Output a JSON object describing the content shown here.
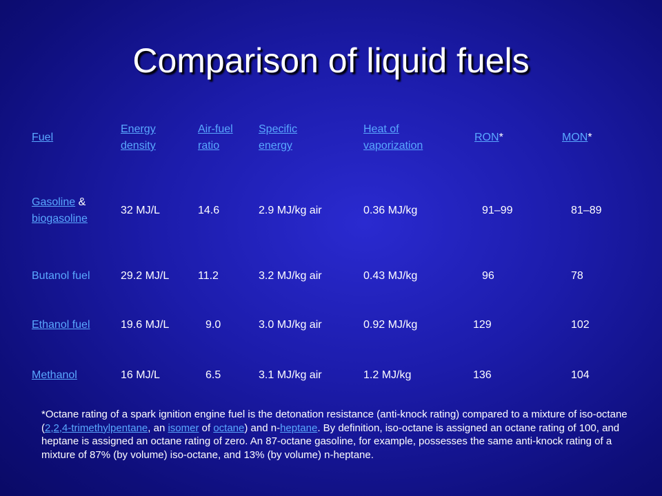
{
  "title": "Comparison of liquid fuels",
  "headers": {
    "fuel": "Fuel",
    "energy_density_1": "Energy",
    "energy_density_2": "density",
    "air_fuel_1": "Air-fuel",
    "air_fuel_2": "ratio",
    "specific_energy_1": "Specific",
    "specific_energy_2": "energy",
    "heat_vap_1": "Heat of",
    "heat_vap_2": "vaporization",
    "ron": "RON",
    "mon": "MON",
    "star": "*"
  },
  "rows": [
    {
      "fuel_a": "Gasoline",
      "fuel_amp": " & ",
      "fuel_b": "biogasoline",
      "energy": "32 MJ/L",
      "afr": "14.6",
      "specific": "2.9 MJ/kg air",
      "heat": "0.36 MJ/kg",
      "ron": "91–99",
      "mon": "81–89"
    },
    {
      "fuel": "Butanol fuel",
      "energy": "29.2 MJ/L",
      "afr": "11.2",
      "specific": "3.2 MJ/kg air",
      "heat": "0.43 MJ/kg",
      "ron": "96",
      "mon": "78"
    },
    {
      "fuel": "Ethanol fuel",
      "energy": "19.6 MJ/L",
      "afr": "9.0",
      "specific": "3.0 MJ/kg air",
      "heat": "0.92 MJ/kg",
      "ron": "129",
      "mon": "102"
    },
    {
      "fuel": "Methanol",
      "energy": "16 MJ/L",
      "afr": "6.5",
      "specific": "3.1 MJ/kg air",
      "heat": "1.2 MJ/kg",
      "ron": "136",
      "mon": "104"
    }
  ],
  "footnote": {
    "p1": "*Octane rating of a spark ignition engine fuel is the detonation resistance (anti-knock rating) compared to a mixture of iso-octane (",
    "l1": "2,2,4-trimethylpentane",
    "p2": ", an ",
    "l2": "isomer",
    "p3": " of ",
    "l3": "octane",
    "p4": ") and n-",
    "l4": "heptane",
    "p5": ". By definition, iso-octane is assigned an octane rating of 100, and heptane is assigned an octane rating of zero.  An 87-octane gasoline, for example, possesses the same anti-knock rating of a mixture of 87% (by volume) iso-octane, and 13% (by volume) n-heptane."
  },
  "colors": {
    "background": "#1c1cab",
    "link": "#5aa8ff",
    "text": "#ffffff"
  }
}
